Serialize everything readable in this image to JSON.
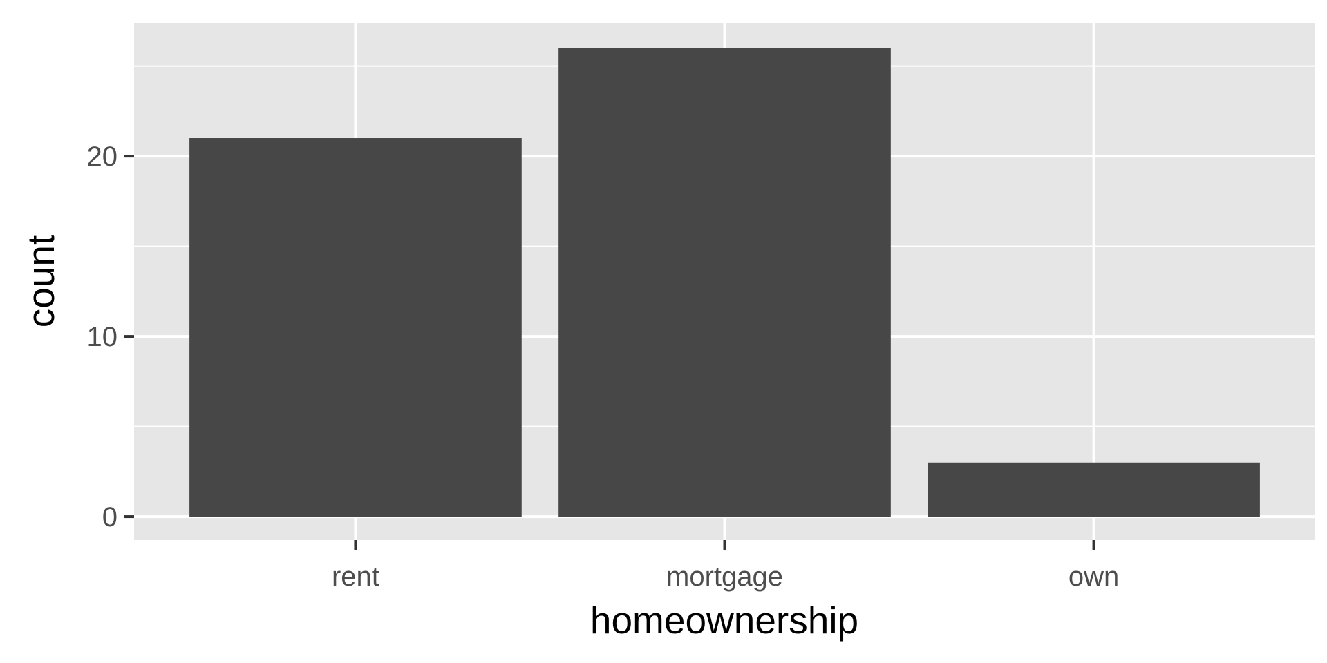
{
  "chart_data": {
    "type": "bar",
    "categories": [
      "rent",
      "mortgage",
      "own"
    ],
    "values": [
      21,
      26,
      3
    ],
    "title": "",
    "xlabel": "homeownership",
    "ylabel": "count",
    "ylim": [
      -1.3,
      27.4
    ],
    "yticks": [
      0,
      10,
      20
    ],
    "yminor": [
      5,
      15,
      25
    ],
    "grid": true,
    "legend": "none",
    "colors": {
      "bar": "#474747",
      "panel": "#e6e6e6",
      "grid": "#ffffff",
      "tick": "#333333"
    }
  }
}
